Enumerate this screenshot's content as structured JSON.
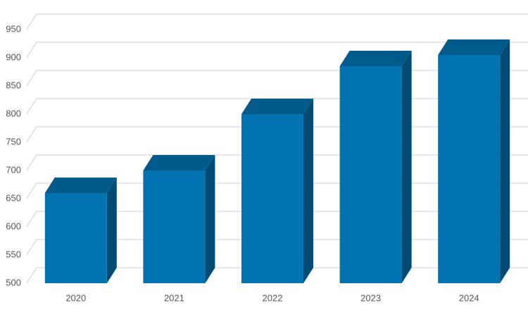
{
  "chart_data": {
    "type": "bar3d",
    "categories": [
      "2020",
      "2021",
      "2022",
      "2023",
      "2024"
    ],
    "values": [
      660,
      700,
      800,
      885,
      905
    ],
    "color": "#0073b0",
    "ylim": [
      500,
      950
    ],
    "yticks": [
      500,
      550,
      600,
      650,
      700,
      750,
      800,
      850,
      900,
      950
    ],
    "grid": true
  }
}
